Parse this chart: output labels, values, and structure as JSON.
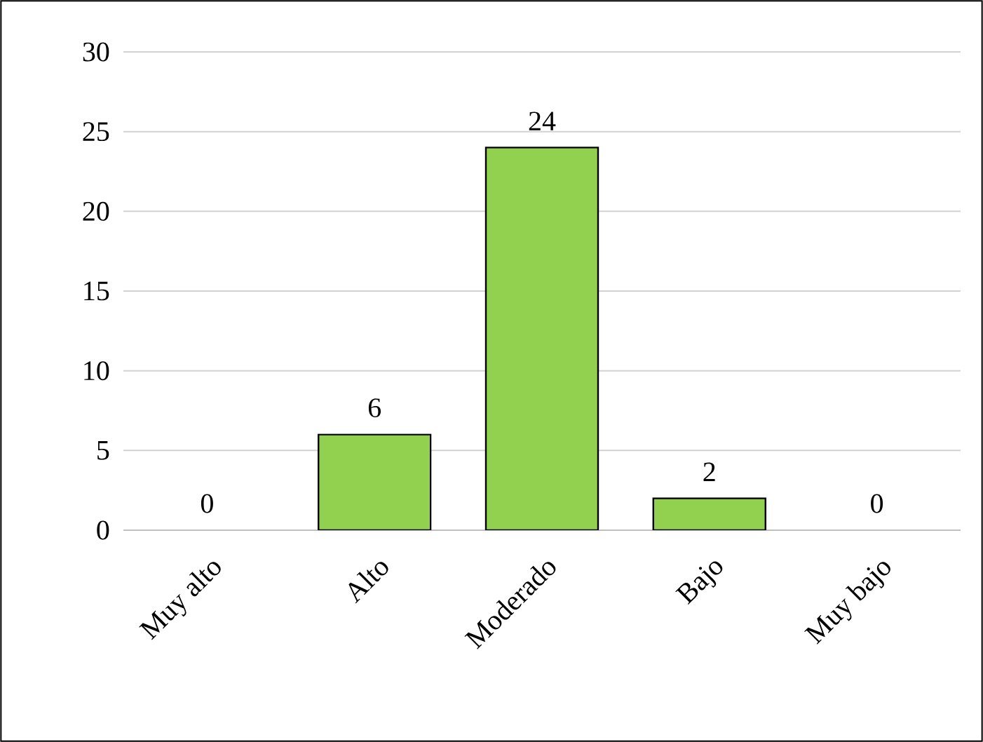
{
  "chart_data": {
    "type": "bar",
    "categories": [
      "Muy alto",
      "Alto",
      "Moderado",
      "Bajo",
      "Muy bajo"
    ],
    "values": [
      0,
      6,
      24,
      2,
      0
    ],
    "color": "#92d050",
    "ylim": [
      0,
      30
    ],
    "yticks": [
      0,
      5,
      10,
      15,
      20,
      25,
      30
    ],
    "grid": "y",
    "data_labels": true
  }
}
